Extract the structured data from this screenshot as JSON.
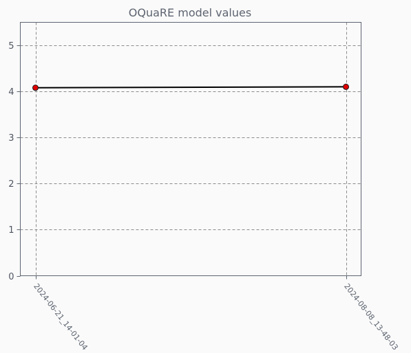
{
  "chart_data": {
    "type": "line",
    "title": "OQuaRE model values",
    "xlabel": "",
    "ylabel": "",
    "categories": [
      "2024-06-21_14-01-04",
      "2024-08-08_13-48-03"
    ],
    "series": [
      {
        "values": [
          4.08,
          4.1
        ]
      }
    ],
    "ylim": [
      0,
      5.5
    ],
    "yticks": [
      0,
      1,
      2,
      3,
      4,
      5
    ],
    "grid": true,
    "colors": {
      "line": "#000000",
      "marker": "#e00000",
      "grid": "#8a8a8a",
      "text": "#5d6470"
    }
  }
}
